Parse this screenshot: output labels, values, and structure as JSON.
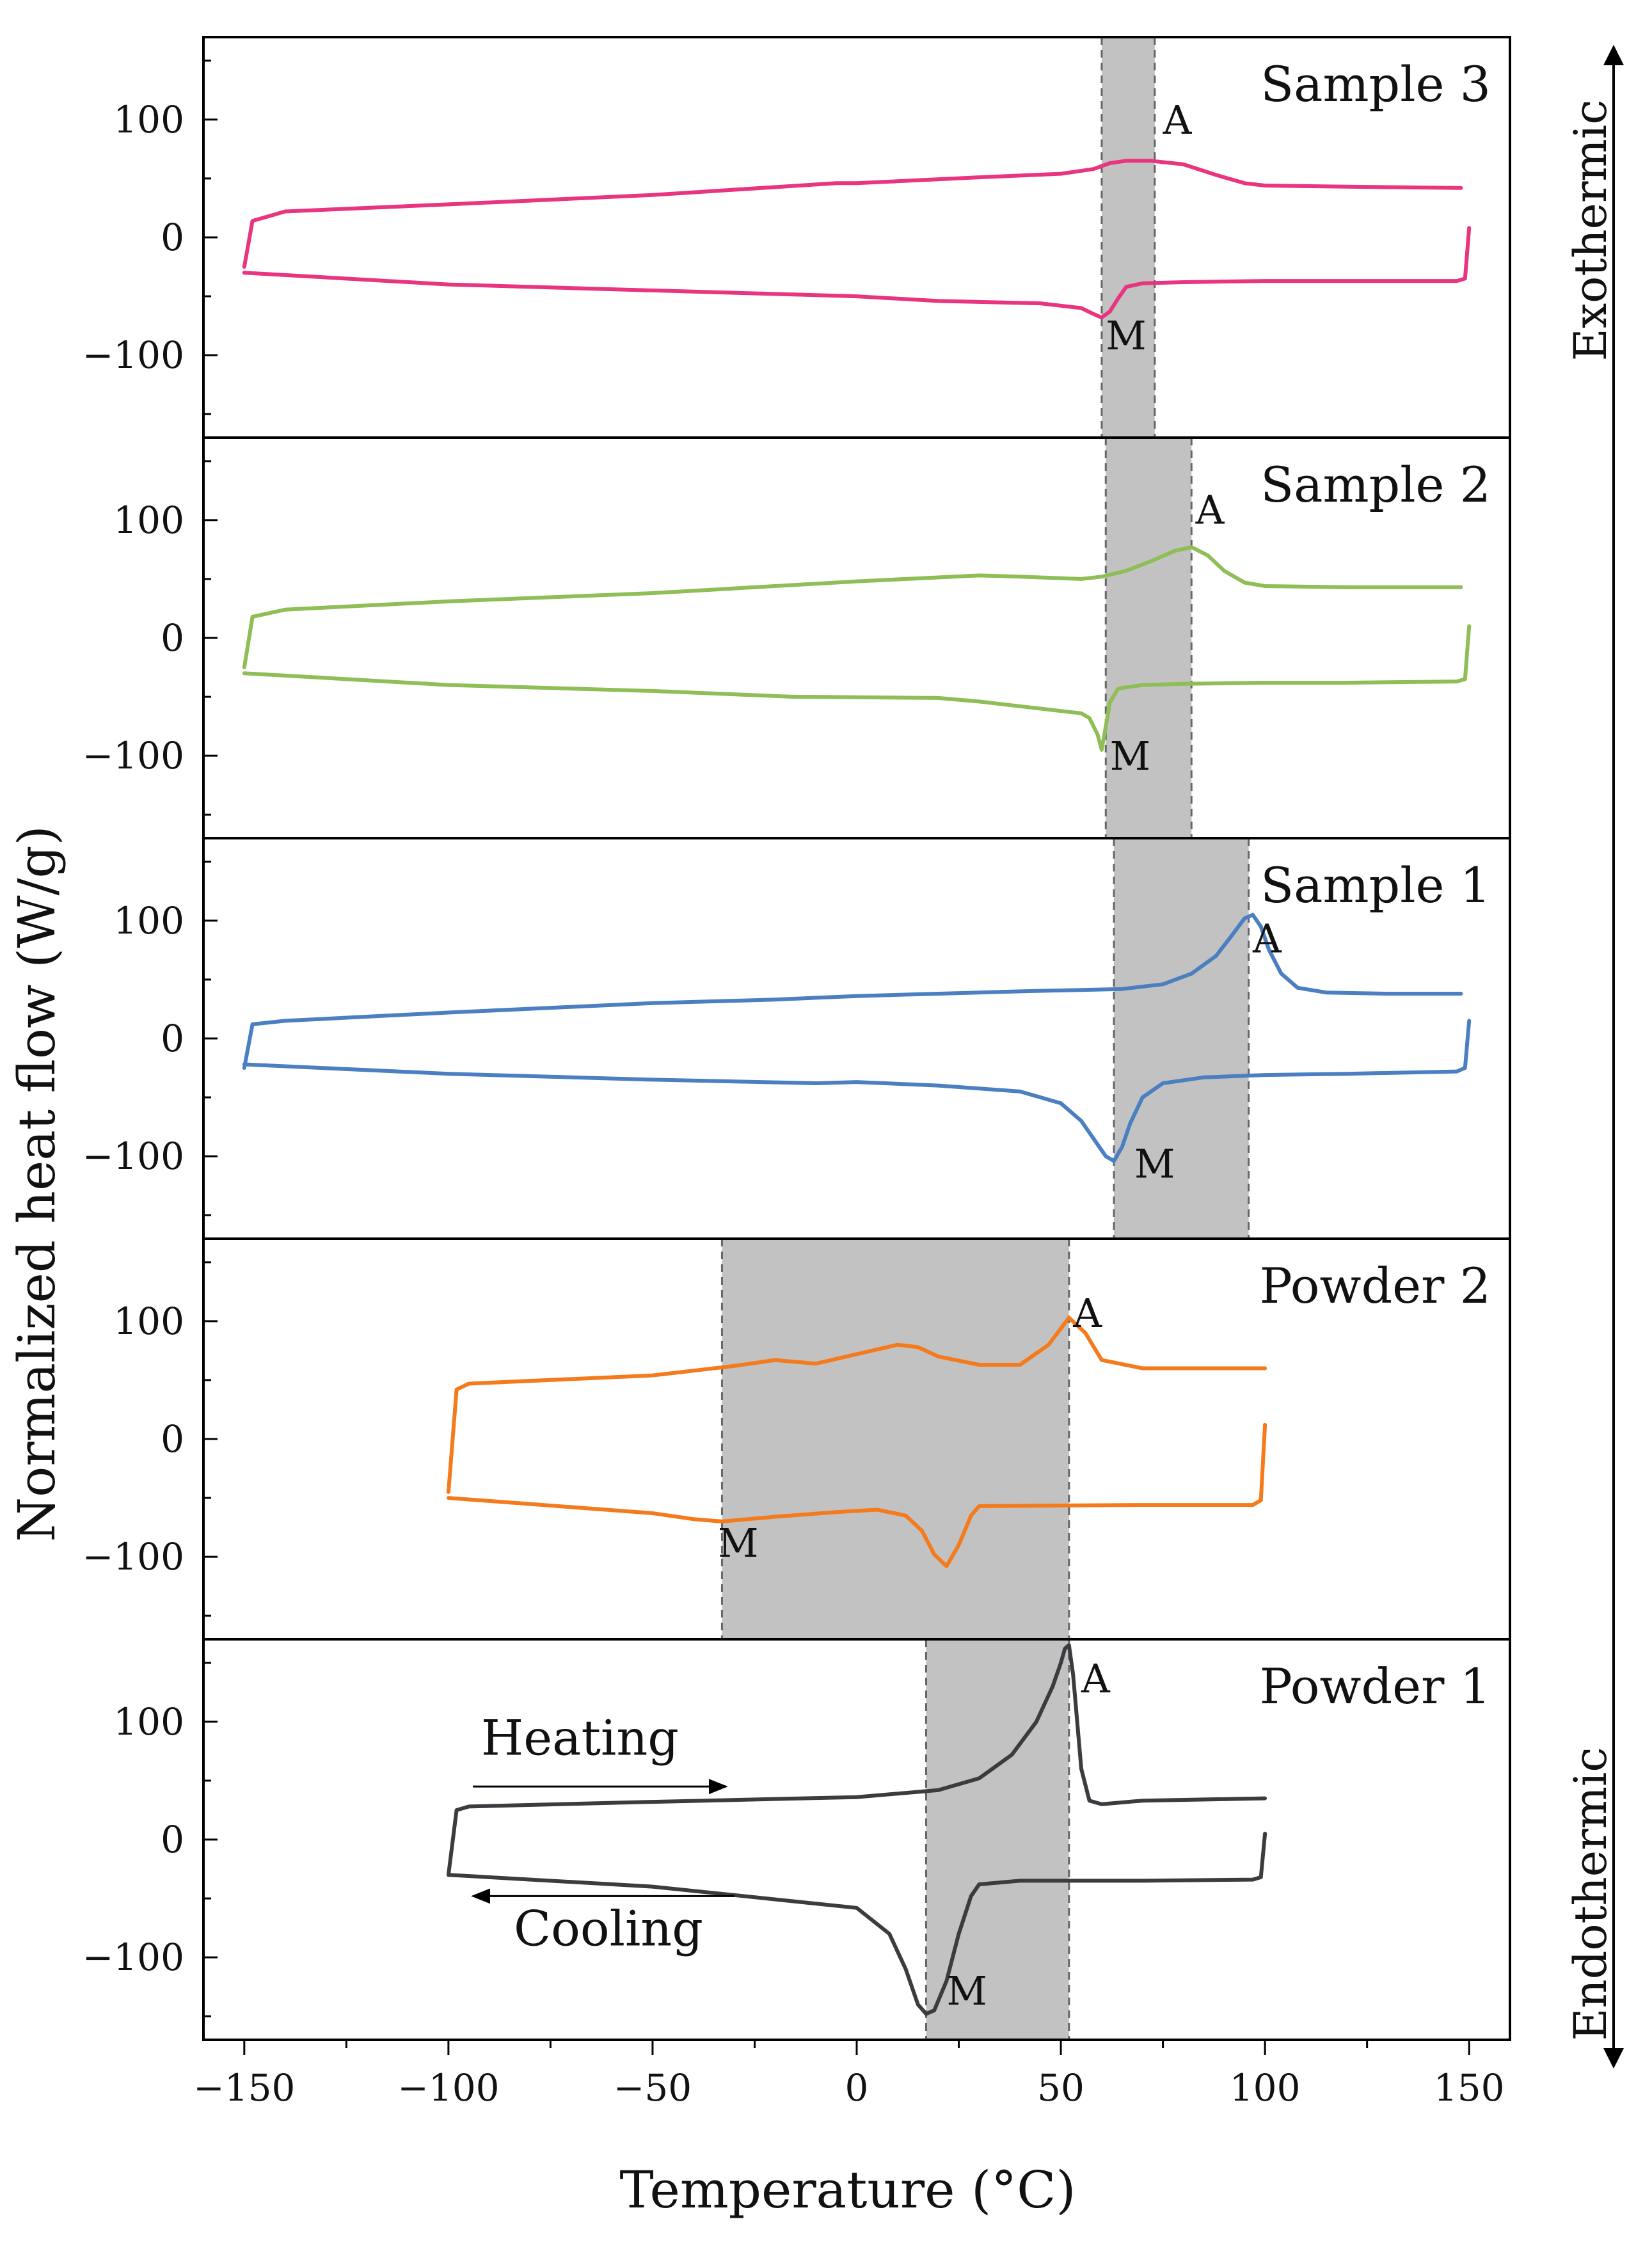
{
  "chart_data": {
    "type": "line",
    "xlabel": "Temperature (°C)",
    "ylabel": "Normalized heat flow (W/g)",
    "xlim": [
      -160,
      160
    ],
    "ylim": [
      -170,
      170
    ],
    "x_ticks": [
      {
        "v": -150,
        "label": "−150"
      },
      {
        "v": -100,
        "label": "−100"
      },
      {
        "v": -50,
        "label": "−50"
      },
      {
        "v": 0,
        "label": "0"
      },
      {
        "v": 50,
        "label": "50"
      },
      {
        "v": 100,
        "label": "100"
      },
      {
        "v": 150,
        "label": "150"
      }
    ],
    "y_ticks": [
      {
        "v": 100,
        "label": "100"
      },
      {
        "v": 0,
        "label": "0"
      },
      {
        "v": -100,
        "label": "−100"
      }
    ],
    "side_labels": {
      "top": "Exothermic",
      "bottom": "Endothermic"
    },
    "grid": false,
    "legend": "none",
    "panels": [
      {
        "title": "Sample 3",
        "color": "#e9347f",
        "band": [
          60,
          73
        ],
        "annotations": [
          {
            "text": "A",
            "x": 75,
            "y": 88
          },
          {
            "text": "M",
            "x": 61,
            "y": -95
          }
        ],
        "series": [
          {
            "name": "Heating",
            "x": [
              -150,
              -148,
              -140,
              -100,
              -50,
              -5,
              0,
              30,
              50,
              58,
              62,
              66,
              72,
              80,
              88,
              95,
              100,
              120,
              148
            ],
            "y": [
              -25,
              14,
              22,
              28,
              36,
              46,
              46,
              51,
              54,
              58,
              63,
              65,
              65,
              62,
              53,
              46,
              44,
              43,
              42
            ]
          },
          {
            "name": "Cooling",
            "x": [
              150,
              149,
              147,
              120,
              100,
              80,
              70,
              66,
              64,
              62,
              60,
              58,
              55,
              45,
              20,
              0,
              -50,
              -100,
              -150
            ],
            "y": [
              8,
              -35,
              -37,
              -37,
              -37,
              -38,
              -39,
              -42,
              -52,
              -63,
              -68,
              -65,
              -60,
              -56,
              -54,
              -50,
              -45,
              -40,
              -30
            ]
          }
        ]
      },
      {
        "title": "Sample 2",
        "color": "#8fbd56",
        "band": [
          61,
          82
        ],
        "annotations": [
          {
            "text": "A",
            "x": 83,
            "y": 97
          },
          {
            "text": "M",
            "x": 62,
            "y": -112
          }
        ],
        "series": [
          {
            "name": "Heating",
            "x": [
              -150,
              -148,
              -140,
              -100,
              -50,
              0,
              30,
              40,
              55,
              60,
              66,
              72,
              78,
              82,
              86,
              90,
              95,
              100,
              120,
              148
            ],
            "y": [
              -25,
              18,
              24,
              31,
              38,
              48,
              53,
              52,
              50,
              52,
              57,
              65,
              74,
              77,
              70,
              57,
              47,
              44,
              43,
              43
            ]
          },
          {
            "name": "Cooling",
            "x": [
              150,
              149,
              147,
              120,
              100,
              80,
              70,
              64,
              62,
              61,
              60,
              59,
              57,
              55,
              50,
              40,
              30,
              20,
              -10,
              -15,
              -50,
              -100,
              -150
            ],
            "y": [
              10,
              -35,
              -37,
              -38,
              -38,
              -39,
              -40,
              -43,
              -55,
              -75,
              -95,
              -82,
              -68,
              -64,
              -62,
              -58,
              -54,
              -51,
              -50,
              -50,
              -45,
              -40,
              -30
            ]
          }
        ]
      },
      {
        "title": "Sample 1",
        "color": "#4a7fc1",
        "band": [
          63,
          96
        ],
        "annotations": [
          {
            "text": "A",
            "x": 97,
            "y": 73
          },
          {
            "text": "M",
            "x": 68,
            "y": -118
          }
        ],
        "series": [
          {
            "name": "Heating",
            "x": [
              -150,
              -148,
              -140,
              -100,
              -50,
              -20,
              0,
              40,
              65,
              75,
              82,
              88,
              92,
              95,
              97,
              99,
              101,
              104,
              108,
              115,
              130,
              148
            ],
            "y": [
              -25,
              12,
              15,
              22,
              30,
              33,
              36,
              40,
              42,
              46,
              55,
              70,
              88,
              102,
              105,
              95,
              75,
              55,
              43,
              39,
              38,
              38
            ]
          },
          {
            "name": "Cooling",
            "x": [
              150,
              149,
              147,
              120,
              100,
              85,
              75,
              70,
              67,
              65,
              63,
              61,
              58,
              55,
              50,
              40,
              20,
              0,
              -10,
              -50,
              -100,
              -150
            ],
            "y": [
              15,
              -25,
              -28,
              -30,
              -31,
              -33,
              -38,
              -50,
              -72,
              -92,
              -104,
              -100,
              -85,
              -70,
              -55,
              -45,
              -40,
              -37,
              -38,
              -35,
              -30,
              -22
            ]
          }
        ]
      },
      {
        "title": "Powder 2",
        "color": "#f47a1c",
        "band": [
          -33,
          52
        ],
        "annotations": [
          {
            "text": "A",
            "x": 53,
            "y": 95
          },
          {
            "text": "M",
            "x": -34,
            "y": -100
          }
        ],
        "series": [
          {
            "name": "Heating",
            "x": [
              -100,
              -98,
              -95,
              -50,
              -30,
              -20,
              -10,
              10,
              15,
              20,
              30,
              40,
              47,
              52,
              56,
              60,
              70,
              100
            ],
            "y": [
              -45,
              42,
              47,
              54,
              62,
              67,
              64,
              80,
              78,
              70,
              63,
              63,
              80,
              103,
              90,
              67,
              60,
              60
            ]
          },
          {
            "name": "Cooling",
            "x": [
              100,
              99,
              97,
              70,
              30,
              28,
              25,
              22,
              19,
              16,
              12,
              5,
              -5,
              -20,
              -33,
              -40,
              -50,
              -100
            ],
            "y": [
              12,
              -52,
              -56,
              -56,
              -57,
              -65,
              -90,
              -108,
              -98,
              -78,
              -65,
              -60,
              -62,
              -66,
              -70,
              -68,
              -63,
              -50
            ]
          }
        ]
      },
      {
        "title": "Powder 1",
        "color": "#3b3b40",
        "band": [
          17,
          52
        ],
        "annotations": [
          {
            "text": "A",
            "x": 55,
            "y": 125
          },
          {
            "text": "M",
            "x": 22,
            "y": -140
          },
          {
            "text": "Heating",
            "x": -92,
            "y": 72
          },
          {
            "text": "Cooling",
            "x": -84,
            "y": -90
          }
        ],
        "arrows": [
          {
            "from": [
              -94,
              45
            ],
            "to": [
              -32,
              45
            ]
          },
          {
            "from": [
              -30,
              -48
            ],
            "to": [
              -94,
              -48
            ]
          }
        ],
        "series": [
          {
            "name": "Heating",
            "x": [
              -100,
              -98,
              -95,
              -50,
              0,
              20,
              30,
              38,
              44,
              48,
              50,
              51,
              52,
              53,
              55,
              57,
              60,
              70,
              100
            ],
            "y": [
              -30,
              25,
              28,
              32,
              36,
              42,
              52,
              72,
              100,
              130,
              150,
              162,
              165,
              140,
              60,
              33,
              30,
              33,
              35
            ]
          },
          {
            "name": "Cooling",
            "x": [
              100,
              99,
              97,
              70,
              40,
              30,
              28,
              25,
              22,
              19,
              17,
              15,
              12,
              8,
              0,
              -50,
              -100
            ],
            "y": [
              5,
              -32,
              -34,
              -35,
              -35,
              -38,
              -48,
              -80,
              -120,
              -145,
              -148,
              -140,
              -110,
              -80,
              -58,
              -40,
              -30
            ]
          }
        ]
      }
    ]
  }
}
